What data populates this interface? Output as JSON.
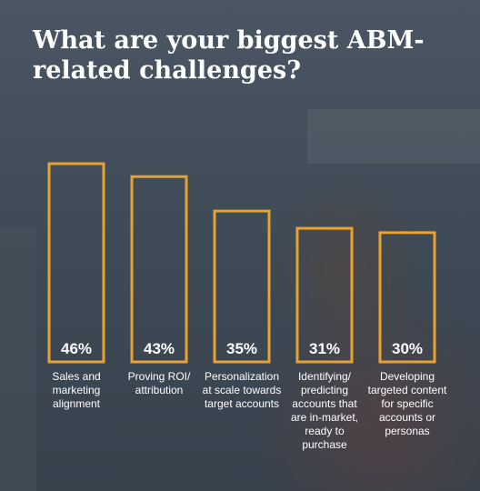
{
  "title": "What are your biggest ABM-related challenges?",
  "colors": {
    "bar_outline": "#e8a232",
    "text": "#ffffff",
    "background": "#3b4753"
  },
  "chart_data": {
    "type": "bar",
    "title": "What are your biggest ABM-related challenges?",
    "categories": [
      "Sales and marketing alignment",
      "Proving ROI/ attribution",
      "Personalization at scale towards target accounts",
      "Identifying/ predicting accounts that are in-market, ready to purchase",
      "Developing targeted content for specific accounts or personas"
    ],
    "values": [
      46,
      43,
      35,
      31,
      30
    ],
    "value_labels": [
      "46%",
      "43%",
      "35%",
      "31%",
      "30%"
    ],
    "ylim": [
      0,
      46
    ],
    "grid": false,
    "legend": "none"
  }
}
